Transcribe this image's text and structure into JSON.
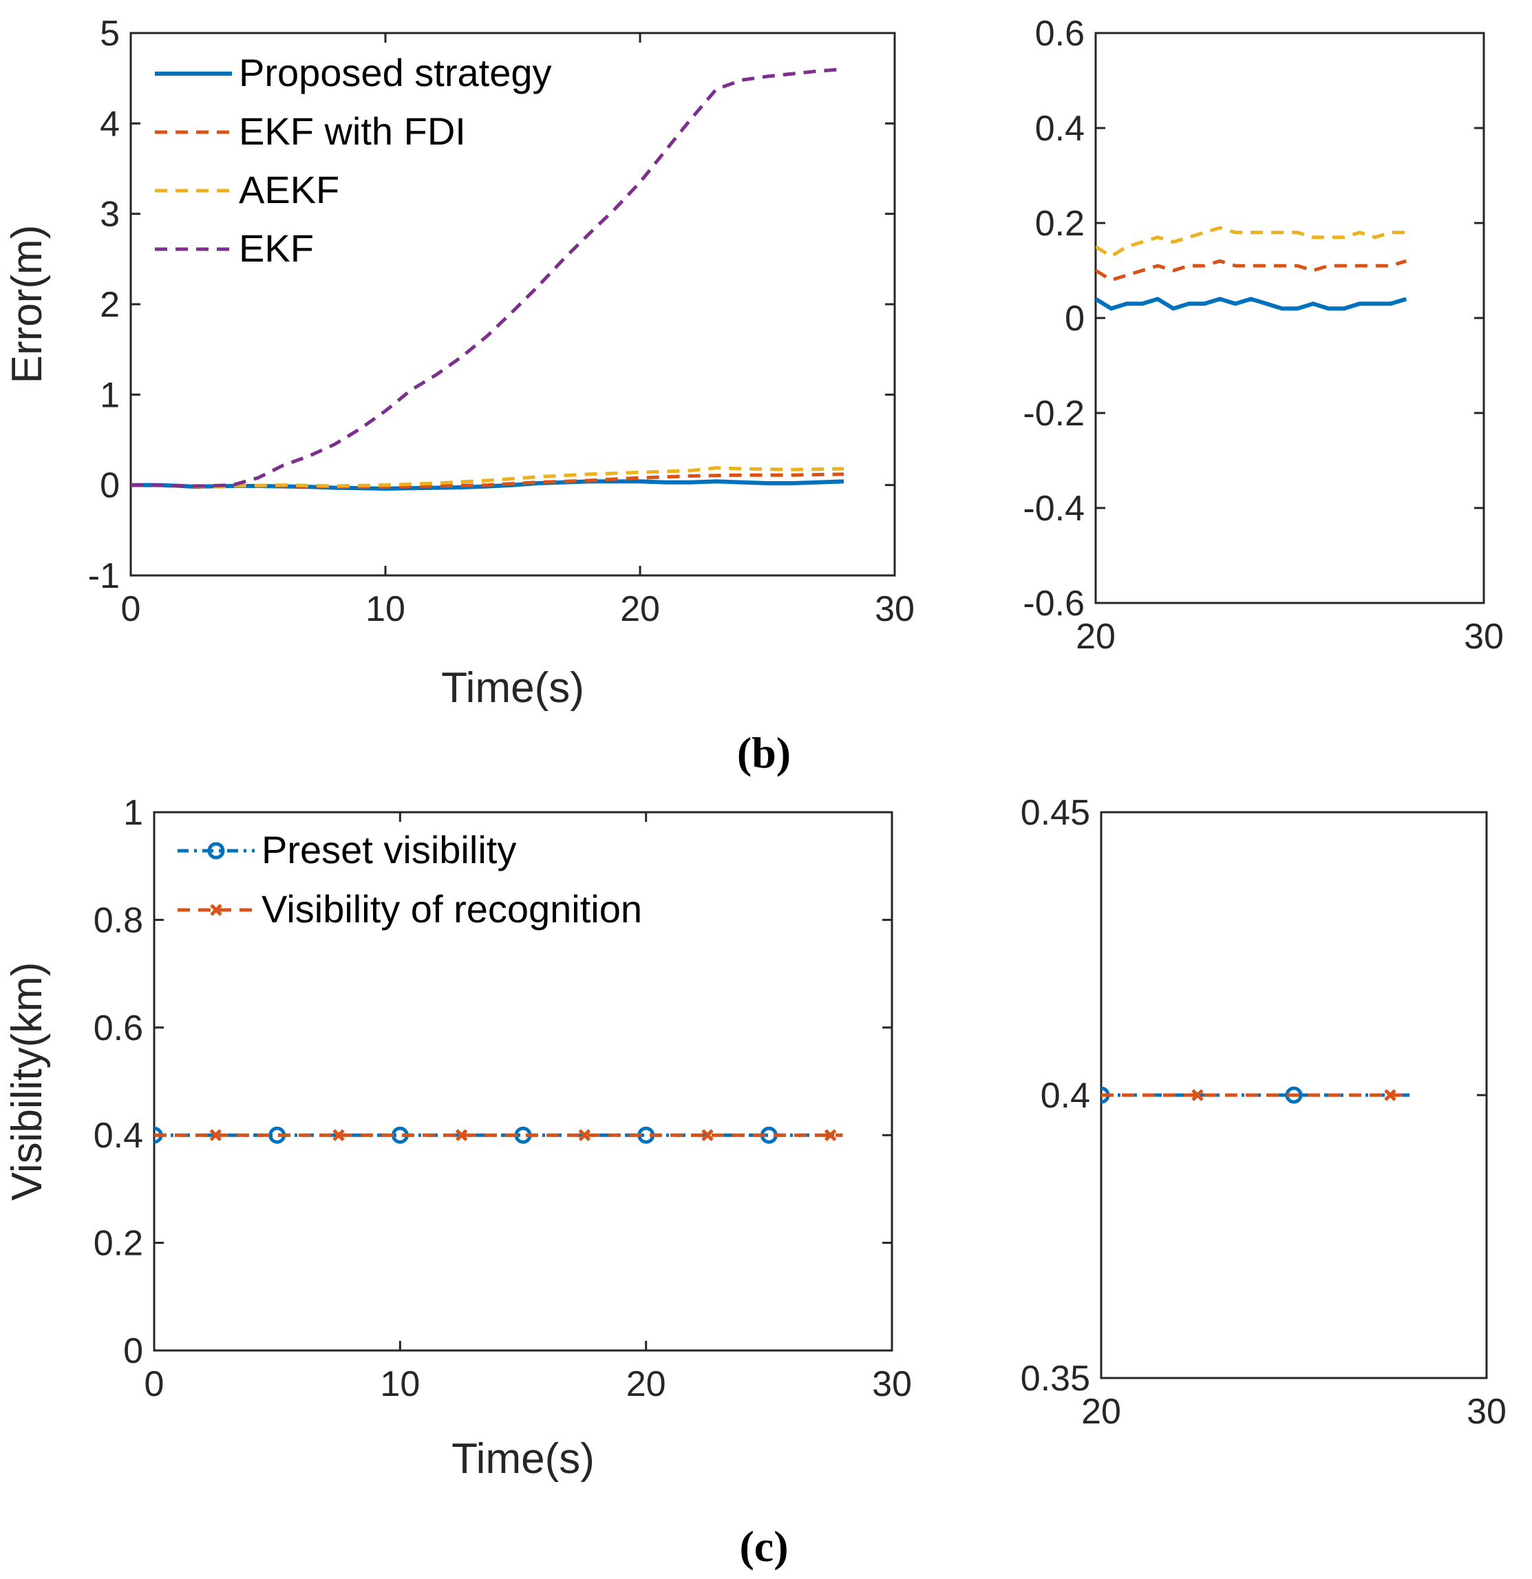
{
  "captions": {
    "b": "(b)",
    "c": "(c)"
  },
  "colors": {
    "proposed": "#0072BD",
    "ekf_fdi": "#D95319",
    "aekf": "#EDB120",
    "ekf": "#7E2F8E",
    "axis": "#262626"
  },
  "chart_data": [
    {
      "id": "b_main",
      "type": "line",
      "xlabel": "Time(s)",
      "ylabel": "Error(m)",
      "xlim": [
        0,
        30
      ],
      "ylim": [
        -1,
        5
      ],
      "xticks": [
        "0",
        "10",
        "20",
        "30"
      ],
      "yticks": [
        "-1",
        "0",
        "1",
        "2",
        "3",
        "4",
        "5"
      ],
      "legend_position": "top-left",
      "series": [
        {
          "name": "Proposed strategy",
          "style": "solid",
          "color": "#0072BD",
          "x": [
            0,
            1,
            2,
            2.6,
            3,
            4,
            5,
            6,
            7,
            8,
            9,
            10,
            11,
            12,
            13,
            14,
            15,
            16,
            17,
            18,
            19,
            20,
            21,
            22,
            23,
            24,
            25,
            26,
            27,
            28
          ],
          "y": [
            0,
            0,
            -0.01,
            -0.02,
            -0.015,
            -0.01,
            -0.01,
            -0.015,
            -0.02,
            -0.03,
            -0.035,
            -0.04,
            -0.035,
            -0.03,
            -0.025,
            -0.015,
            0,
            0.02,
            0.03,
            0.04,
            0.04,
            0.04,
            0.03,
            0.03,
            0.04,
            0.03,
            0.02,
            0.02,
            0.03,
            0.04
          ]
        },
        {
          "name": "EKF with FDI",
          "style": "dashed",
          "color": "#D95319",
          "x": [
            0,
            2,
            3,
            4,
            6,
            8,
            10,
            12,
            14,
            16,
            18,
            20,
            22,
            24,
            26,
            28
          ],
          "y": [
            0,
            -0.01,
            -0.02,
            -0.01,
            -0.01,
            -0.02,
            -0.02,
            -0.01,
            0.0,
            0.03,
            0.05,
            0.08,
            0.1,
            0.11,
            0.11,
            0.12
          ]
        },
        {
          "name": "AEKF",
          "style": "dashed",
          "color": "#EDB120",
          "x": [
            0,
            2,
            3,
            4,
            6,
            8,
            10,
            11,
            12,
            14,
            16,
            18,
            20,
            21,
            22,
            23,
            24,
            26,
            28
          ],
          "y": [
            0,
            -0.01,
            -0.02,
            -0.01,
            0.0,
            -0.01,
            0.0,
            0.01,
            0.02,
            0.05,
            0.09,
            0.12,
            0.14,
            0.15,
            0.16,
            0.19,
            0.18,
            0.17,
            0.18
          ]
        },
        {
          "name": "EKF",
          "style": "dashed",
          "color": "#7E2F8E",
          "x": [
            0,
            1,
            2,
            3,
            4,
            5,
            6,
            7,
            8,
            9,
            10,
            11,
            12,
            13,
            14,
            15,
            16,
            17,
            18,
            19,
            20,
            21,
            22,
            23,
            24,
            25,
            26,
            27,
            28
          ],
          "y": [
            0,
            0,
            -0.01,
            -0.01,
            0.0,
            0.08,
            0.22,
            0.32,
            0.45,
            0.62,
            0.82,
            1.05,
            1.22,
            1.42,
            1.65,
            1.92,
            2.2,
            2.5,
            2.78,
            3.05,
            3.35,
            3.7,
            4.05,
            4.38,
            4.48,
            4.52,
            4.55,
            4.58,
            4.6
          ]
        }
      ]
    },
    {
      "id": "b_zoom",
      "type": "line",
      "xlabel": "",
      "ylabel": "",
      "xlim": [
        20,
        30
      ],
      "ylim": [
        -0.6,
        0.6
      ],
      "xticks": [
        "20",
        "30"
      ],
      "yticks": [
        "-0.6",
        "-0.4",
        "-0.2",
        "0",
        "0.2",
        "0.4",
        "0.6"
      ],
      "series": [
        {
          "name": "Proposed strategy",
          "style": "solid",
          "color": "#0072BD",
          "x": [
            20,
            20.2,
            20.4,
            20.8,
            21.2,
            21.6,
            22,
            22.4,
            22.8,
            23.2,
            23.6,
            24,
            24.4,
            24.8,
            25.2,
            25.6,
            26,
            26.4,
            26.8,
            27.2,
            27.6,
            28
          ],
          "y": [
            0.04,
            0.03,
            0.02,
            0.03,
            0.03,
            0.04,
            0.02,
            0.03,
            0.03,
            0.04,
            0.03,
            0.04,
            0.03,
            0.02,
            0.02,
            0.03,
            0.02,
            0.02,
            0.03,
            0.03,
            0.03,
            0.04
          ]
        },
        {
          "name": "EKF with FDI",
          "style": "dashed",
          "color": "#D95319",
          "x": [
            20,
            20.4,
            20.8,
            21.2,
            21.6,
            22,
            22.4,
            22.8,
            23.2,
            23.6,
            24,
            24.4,
            24.8,
            25.2,
            25.6,
            26,
            26.4,
            26.8,
            27.2,
            27.6,
            28
          ],
          "y": [
            0.1,
            0.08,
            0.09,
            0.1,
            0.11,
            0.1,
            0.11,
            0.11,
            0.12,
            0.11,
            0.11,
            0.11,
            0.11,
            0.11,
            0.1,
            0.11,
            0.11,
            0.11,
            0.11,
            0.11,
            0.12
          ]
        },
        {
          "name": "AEKF",
          "style": "dashed",
          "color": "#EDB120",
          "x": [
            20,
            20.4,
            20.8,
            21.2,
            21.6,
            22,
            22.4,
            22.8,
            23.2,
            23.6,
            24,
            24.4,
            24.8,
            25.2,
            25.6,
            26,
            26.4,
            26.8,
            27.2,
            27.6,
            28
          ],
          "y": [
            0.15,
            0.13,
            0.15,
            0.16,
            0.17,
            0.16,
            0.17,
            0.18,
            0.19,
            0.18,
            0.18,
            0.18,
            0.18,
            0.18,
            0.17,
            0.17,
            0.17,
            0.18,
            0.17,
            0.18,
            0.18
          ]
        }
      ]
    },
    {
      "id": "c_main",
      "type": "line",
      "xlabel": "Time(s)",
      "ylabel": "Visibility(km)",
      "xlim": [
        0,
        30
      ],
      "ylim": [
        0,
        1
      ],
      "xticks": [
        "0",
        "10",
        "20",
        "30"
      ],
      "yticks": [
        "0",
        "0.2",
        "0.4",
        "0.6",
        "0.8",
        "1"
      ],
      "legend_position": "top-left",
      "series": [
        {
          "name": "Preset visibility",
          "style": "dashdot",
          "marker": "o",
          "color": "#0072BD",
          "x": [
            0,
            28
          ],
          "y": [
            0.4,
            0.4
          ],
          "marker_x": [
            0,
            5,
            10,
            15,
            20,
            25
          ]
        },
        {
          "name": "Visibility of recognition",
          "style": "dashed",
          "marker": "x",
          "color": "#D95319",
          "x": [
            0,
            28
          ],
          "y": [
            0.4,
            0.4
          ],
          "marker_x": [
            2.5,
            7.5,
            12.5,
            17.5,
            22.5,
            27.5
          ]
        }
      ]
    },
    {
      "id": "c_zoom",
      "type": "line",
      "xlabel": "",
      "ylabel": "",
      "xlim": [
        20,
        30
      ],
      "ylim": [
        0.35,
        0.45
      ],
      "xticks": [
        "20",
        "30"
      ],
      "yticks": [
        "0.35",
        "0.4",
        "0.45"
      ],
      "series": [
        {
          "name": "Preset visibility",
          "style": "dashdot",
          "marker": "o",
          "color": "#0072BD",
          "x": [
            20,
            28
          ],
          "y": [
            0.4,
            0.4
          ],
          "marker_x": [
            20,
            25
          ]
        },
        {
          "name": "Visibility of recognition",
          "style": "dashed",
          "marker": "x",
          "color": "#D95319",
          "x": [
            20,
            28
          ],
          "y": [
            0.4,
            0.4
          ],
          "marker_x": [
            22.5,
            27.5
          ]
        }
      ]
    }
  ]
}
